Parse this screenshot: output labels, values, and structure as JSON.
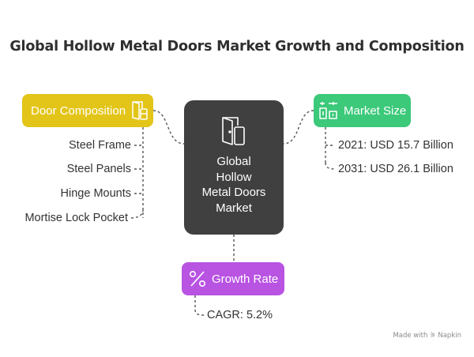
{
  "title": "Global Hollow Metal Doors Market Growth and Composition",
  "center": {
    "label_lines": [
      "Global",
      "Hollow",
      "Metal Doors",
      "Market"
    ],
    "icon": "door-icon"
  },
  "composition": {
    "label": "Door Composition",
    "icon": "door-panels-icon",
    "color": "#e3c51a",
    "items": [
      "Steel Frame",
      "Steel Panels",
      "Hinge Mounts",
      "Mortise Lock Pocket"
    ]
  },
  "market_size": {
    "label": "Market Size",
    "icon": "building-chart-icon",
    "color": "#3cc97a",
    "items": [
      "2021: USD 15.7 Billion",
      "2031: USD 26.1 Billion"
    ]
  },
  "growth": {
    "label": "Growth Rate",
    "icon": "percent-icon",
    "color": "#b853e2",
    "items": [
      "CAGR: 5.2%"
    ]
  },
  "center_color": "#404040",
  "footer": "Made with ⚞ Napkin"
}
